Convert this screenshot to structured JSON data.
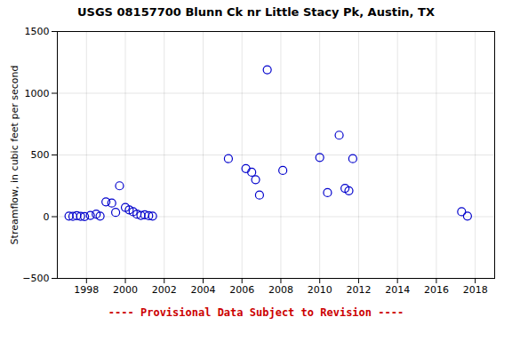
{
  "chart_data": {
    "type": "scatter",
    "title": "USGS 08157700 Blunn Ck nr Little Stacy Pk, Austin, TX",
    "ylabel": "Streamflow, in cubic feet per second",
    "x": [
      1997.1,
      1997.3,
      1997.5,
      1997.7,
      1997.9,
      1998.2,
      1998.5,
      1998.7,
      1999.0,
      1999.3,
      1999.5,
      1999.7,
      2000.0,
      2000.2,
      2000.4,
      2000.6,
      2000.8,
      2001.0,
      2001.2,
      2001.4,
      2005.3,
      2006.2,
      2006.5,
      2006.7,
      2006.9,
      2007.3,
      2008.1,
      2010.0,
      2010.4,
      2011.0,
      2011.3,
      2011.5,
      2011.7,
      2017.3,
      2017.6
    ],
    "values": [
      5,
      2,
      8,
      3,
      1,
      10,
      20,
      5,
      120,
      110,
      35,
      250,
      75,
      55,
      40,
      20,
      10,
      15,
      8,
      5,
      470,
      390,
      360,
      300,
      175,
      1190,
      375,
      480,
      195,
      660,
      230,
      210,
      470,
      40,
      5
    ],
    "color": "#0000CC",
    "marker": "circle",
    "xlim": [
      1996.5,
      2019.0
    ],
    "ylim": [
      -500,
      1500
    ],
    "xticks": [
      1998,
      2000,
      2002,
      2004,
      2006,
      2008,
      2010,
      2012,
      2014,
      2016,
      2018
    ],
    "yticks": [
      -500,
      0,
      500,
      1000,
      1500
    ],
    "grid": true,
    "annotations": [
      {
        "text": "---- Provisional Data Subject to Revision ----",
        "color": "#cc0000"
      }
    ]
  }
}
